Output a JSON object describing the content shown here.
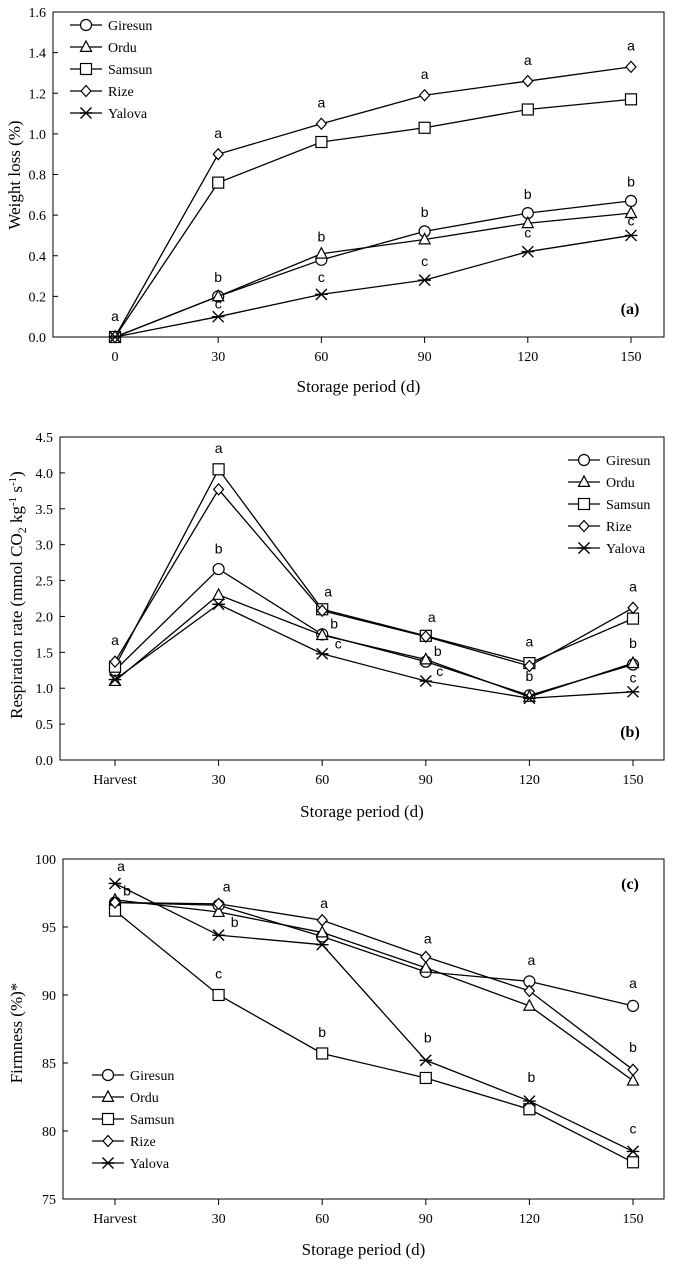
{
  "series_names": [
    "Giresun",
    "Ordu",
    "Samsun",
    "Rize",
    "Yalova"
  ],
  "chart_data": [
    {
      "type": "line",
      "panel_label": "(a)",
      "xlabel": "Storage period (d)",
      "ylabel": "Weight loss (%)",
      "x_tick_labels": [
        "0",
        "30",
        "60",
        "90",
        "120",
        "150"
      ],
      "ylim": [
        0,
        1.6
      ],
      "y_ticks": [
        0.0,
        0.2,
        0.4,
        0.6,
        0.8,
        1.0,
        1.2,
        1.4,
        1.6
      ],
      "y_tick_decimals": 1,
      "legend_position": "top-left",
      "series": [
        {
          "name": "Giresun",
          "values": [
            0,
            0.2,
            0.38,
            0.52,
            0.61,
            0.67
          ]
        },
        {
          "name": "Ordu",
          "values": [
            0,
            0.2,
            0.41,
            0.48,
            0.56,
            0.61
          ]
        },
        {
          "name": "Samsun",
          "values": [
            0,
            0.76,
            0.96,
            1.03,
            1.12,
            1.17
          ]
        },
        {
          "name": "Rize",
          "values": [
            0,
            0.9,
            1.05,
            1.19,
            1.26,
            1.33
          ]
        },
        {
          "name": "Yalova",
          "values": [
            0,
            0.1,
            0.21,
            0.28,
            0.42,
            0.5
          ]
        }
      ],
      "annotations": [
        {
          "x": 0,
          "y": 0.08,
          "text": "a"
        },
        {
          "x": 1,
          "y": 0.98,
          "text": "a"
        },
        {
          "x": 1,
          "y": 0.27,
          "text": "b"
        },
        {
          "x": 1,
          "y": 0.14,
          "text": "c"
        },
        {
          "x": 2,
          "y": 1.13,
          "text": "a"
        },
        {
          "x": 2,
          "y": 0.47,
          "text": "b"
        },
        {
          "x": 2,
          "y": 0.27,
          "text": "c"
        },
        {
          "x": 3,
          "y": 1.27,
          "text": "a"
        },
        {
          "x": 3,
          "y": 0.59,
          "text": "b"
        },
        {
          "x": 3,
          "y": 0.35,
          "text": "c"
        },
        {
          "x": 4,
          "y": 1.34,
          "text": "a"
        },
        {
          "x": 4,
          "y": 0.68,
          "text": "b"
        },
        {
          "x": 4,
          "y": 0.49,
          "text": "c"
        },
        {
          "x": 5,
          "y": 1.41,
          "text": "a"
        },
        {
          "x": 5,
          "y": 0.74,
          "text": "b"
        },
        {
          "x": 5,
          "y": 0.55,
          "text": "c"
        }
      ]
    },
    {
      "type": "line",
      "panel_label": "(b)",
      "xlabel": "Storage period (d)",
      "ylabel_main": "Respiration rate (mmol CO",
      "ylabel_sub": "2",
      "ylabel_mid": " kg",
      "ylabel_sup1": "-1",
      "ylabel_mid2": " s",
      "ylabel_sup2": "-1",
      "ylabel_end": ")",
      "x_tick_labels": [
        "Harvest",
        "30",
        "60",
        "90",
        "120",
        "150"
      ],
      "ylim": [
        0,
        4.5
      ],
      "y_ticks": [
        0.0,
        0.5,
        1.0,
        1.5,
        2.0,
        2.5,
        3.0,
        3.5,
        4.0,
        4.5
      ],
      "y_tick_decimals": 1,
      "legend_position": "top-right",
      "series": [
        {
          "name": "Giresun",
          "values": [
            1.25,
            2.66,
            1.75,
            1.37,
            0.9,
            1.33
          ]
        },
        {
          "name": "Ordu",
          "values": [
            1.1,
            2.3,
            1.74,
            1.4,
            0.88,
            1.35
          ]
        },
        {
          "name": "Samsun",
          "values": [
            1.3,
            4.05,
            2.1,
            1.73,
            1.35,
            1.97
          ]
        },
        {
          "name": "Rize",
          "values": [
            1.37,
            3.77,
            2.08,
            1.72,
            1.31,
            2.12
          ]
        },
        {
          "name": "Yalova",
          "values": [
            1.12,
            2.17,
            1.48,
            1.1,
            0.86,
            0.95
          ]
        }
      ],
      "annotations": [
        {
          "x": 0,
          "y": 1.6,
          "text": "a",
          "dx": 0
        },
        {
          "x": 1,
          "y": 4.28,
          "text": "a",
          "dx": 0
        },
        {
          "x": 1,
          "y": 2.88,
          "text": "b",
          "dx": 0
        },
        {
          "x": 2,
          "y": 2.28,
          "text": "a",
          "dx": 6
        },
        {
          "x": 2,
          "y": 1.83,
          "text": "b",
          "dx": 12
        },
        {
          "x": 2,
          "y": 1.55,
          "text": "c",
          "dx": 16
        },
        {
          "x": 3,
          "y": 1.92,
          "text": "a",
          "dx": 6
        },
        {
          "x": 3,
          "y": 1.45,
          "text": "b",
          "dx": 12
        },
        {
          "x": 3,
          "y": 1.17,
          "text": "c",
          "dx": 14
        },
        {
          "x": 4,
          "y": 1.58,
          "text": "a",
          "dx": 0
        },
        {
          "x": 4,
          "y": 1.1,
          "text": "b",
          "dx": 0
        },
        {
          "x": 5,
          "y": 2.35,
          "text": "a",
          "dx": 0
        },
        {
          "x": 5,
          "y": 1.56,
          "text": "b",
          "dx": 0
        },
        {
          "x": 5,
          "y": 1.08,
          "text": "c",
          "dx": 0
        }
      ]
    },
    {
      "type": "line",
      "panel_label": "(c)",
      "xlabel": "Storage period (d)",
      "ylabel": "Firmness (%)*",
      "x_tick_labels": [
        "Harvest",
        "30",
        "60",
        "90",
        "120",
        "150"
      ],
      "ylim": [
        75,
        100
      ],
      "y_ticks": [
        75,
        80,
        85,
        90,
        95,
        100
      ],
      "y_tick_decimals": 0,
      "legend_position": "bottom-left",
      "series": [
        {
          "name": "Giresun",
          "values": [
            96.8,
            96.6,
            94.3,
            91.7,
            91.0,
            89.2
          ]
        },
        {
          "name": "Ordu",
          "values": [
            97.0,
            96.1,
            94.6,
            92.0,
            89.2,
            83.7
          ]
        },
        {
          "name": "Samsun",
          "values": [
            96.2,
            90.0,
            85.7,
            83.9,
            81.6,
            77.7
          ]
        },
        {
          "name": "Rize",
          "values": [
            96.8,
            96.7,
            95.5,
            92.8,
            90.3,
            84.5
          ]
        },
        {
          "name": "Yalova",
          "values": [
            98.2,
            94.4,
            93.7,
            85.2,
            82.2,
            78.5
          ]
        }
      ],
      "annotations": [
        {
          "x": 0,
          "y": 99.1,
          "text": "a",
          "dx": 6
        },
        {
          "x": 0,
          "y": 97.3,
          "text": "b",
          "dx": 12
        },
        {
          "x": 1,
          "y": 97.6,
          "text": "a",
          "dx": 8
        },
        {
          "x": 1,
          "y": 95.0,
          "text": "b",
          "dx": 16
        },
        {
          "x": 1,
          "y": 91.2,
          "text": "c",
          "dx": 0
        },
        {
          "x": 2,
          "y": 96.4,
          "text": "a",
          "dx": 2
        },
        {
          "x": 2,
          "y": 86.9,
          "text": "b",
          "dx": 0
        },
        {
          "x": 3,
          "y": 93.8,
          "text": "a",
          "dx": 2
        },
        {
          "x": 3,
          "y": 86.5,
          "text": "b",
          "dx": 2
        },
        {
          "x": 4,
          "y": 92.2,
          "text": "a",
          "dx": 2
        },
        {
          "x": 4,
          "y": 83.6,
          "text": "b",
          "dx": 2
        },
        {
          "x": 5,
          "y": 90.5,
          "text": "a",
          "dx": 0
        },
        {
          "x": 5,
          "y": 85.8,
          "text": "b",
          "dx": 0
        },
        {
          "x": 5,
          "y": 79.8,
          "text": "c",
          "dx": 0
        }
      ]
    }
  ]
}
